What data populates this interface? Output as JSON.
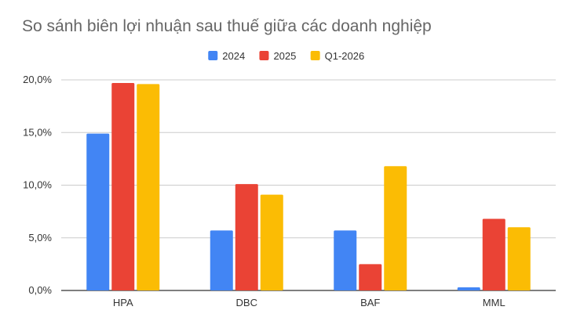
{
  "chart_data": {
    "type": "bar",
    "title": "So sánh biên lợi nhuận sau thuế giữa các doanh nghiệp",
    "xlabel": "",
    "ylabel": "",
    "categories": [
      "HPA",
      "DBC",
      "BAF",
      "MML"
    ],
    "series": [
      {
        "name": "2024",
        "color": "#4285f4",
        "values": [
          14.9,
          5.7,
          5.7,
          0.3
        ]
      },
      {
        "name": "2025",
        "color": "#ea4335",
        "values": [
          19.7,
          10.1,
          2.5,
          6.8
        ]
      },
      {
        "name": "Q1-2026",
        "color": "#fbbc04",
        "values": [
          19.6,
          9.1,
          11.8,
          6.0
        ]
      }
    ],
    "ylim": [
      0,
      20
    ],
    "yticks": [
      0,
      5,
      10,
      15,
      20
    ],
    "ytick_labels": [
      "0,0%",
      "5,0%",
      "10,0%",
      "15,0%",
      "20,0%"
    ],
    "grid": true,
    "legend_position": "top-center"
  }
}
